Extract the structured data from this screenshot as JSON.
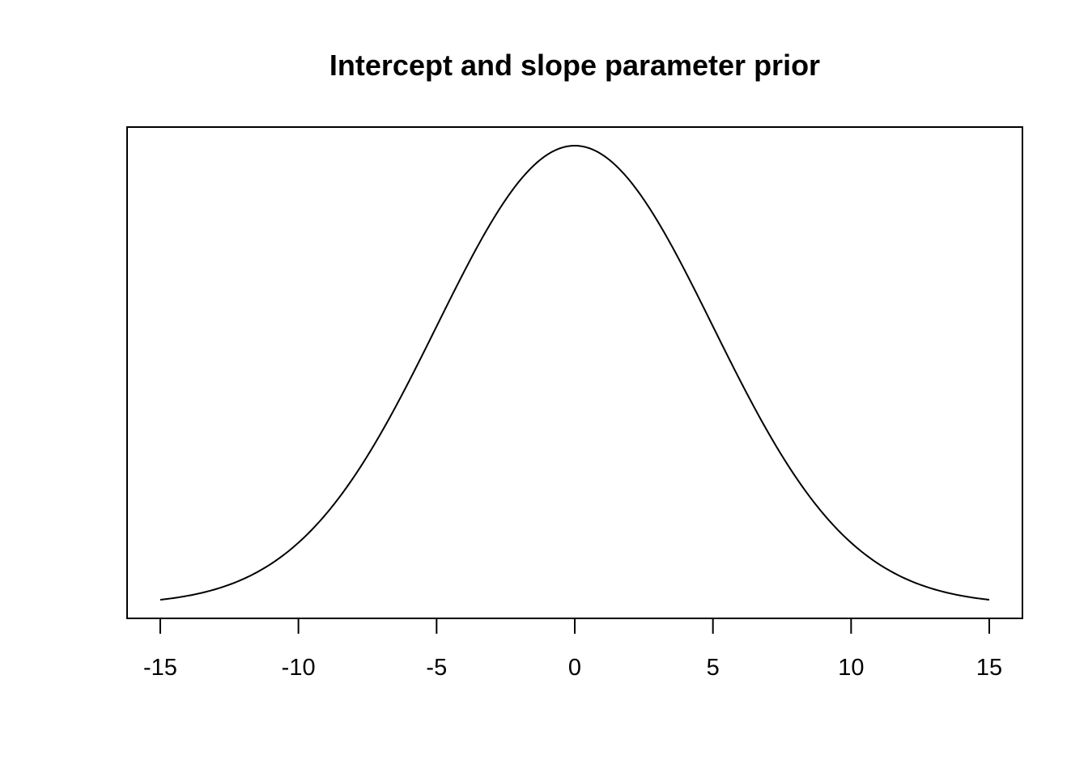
{
  "chart_data": {
    "type": "line",
    "title": "Intercept and slope parameter prior",
    "xlabel": "",
    "ylabel": "",
    "xlim": [
      -16.2,
      16.2
    ],
    "x_ticks": [
      -15,
      -10,
      -5,
      0,
      5,
      10,
      15
    ],
    "x_tick_labels": [
      "-15",
      "-10",
      "-5",
      "0",
      "5",
      "10",
      "15"
    ],
    "y_axis_shown": false,
    "grid": false,
    "legend": "none",
    "line_color": "#000000",
    "series": [
      {
        "distribution": "normal",
        "mean": 0,
        "sd": 5,
        "x_range": [
          -15,
          15
        ],
        "x": [
          -15,
          -14,
          -13,
          -12,
          -11,
          -10,
          -9,
          -8,
          -7,
          -6,
          -5,
          -4,
          -3,
          -2,
          -1,
          0,
          1,
          2,
          3,
          4,
          5,
          6,
          7,
          8,
          9,
          10,
          11,
          12,
          13,
          14,
          15
        ],
        "y": [
          0.00089,
          0.00158,
          0.00272,
          0.00449,
          0.0071,
          0.0108,
          0.01579,
          0.02218,
          0.02995,
          0.03884,
          0.04839,
          0.05794,
          0.06664,
          0.07365,
          0.07821,
          0.07979,
          0.07821,
          0.07365,
          0.06664,
          0.05794,
          0.04839,
          0.03884,
          0.02995,
          0.02218,
          0.01579,
          0.0108,
          0.0071,
          0.00449,
          0.00272,
          0.00158,
          0.00089
        ]
      }
    ]
  }
}
